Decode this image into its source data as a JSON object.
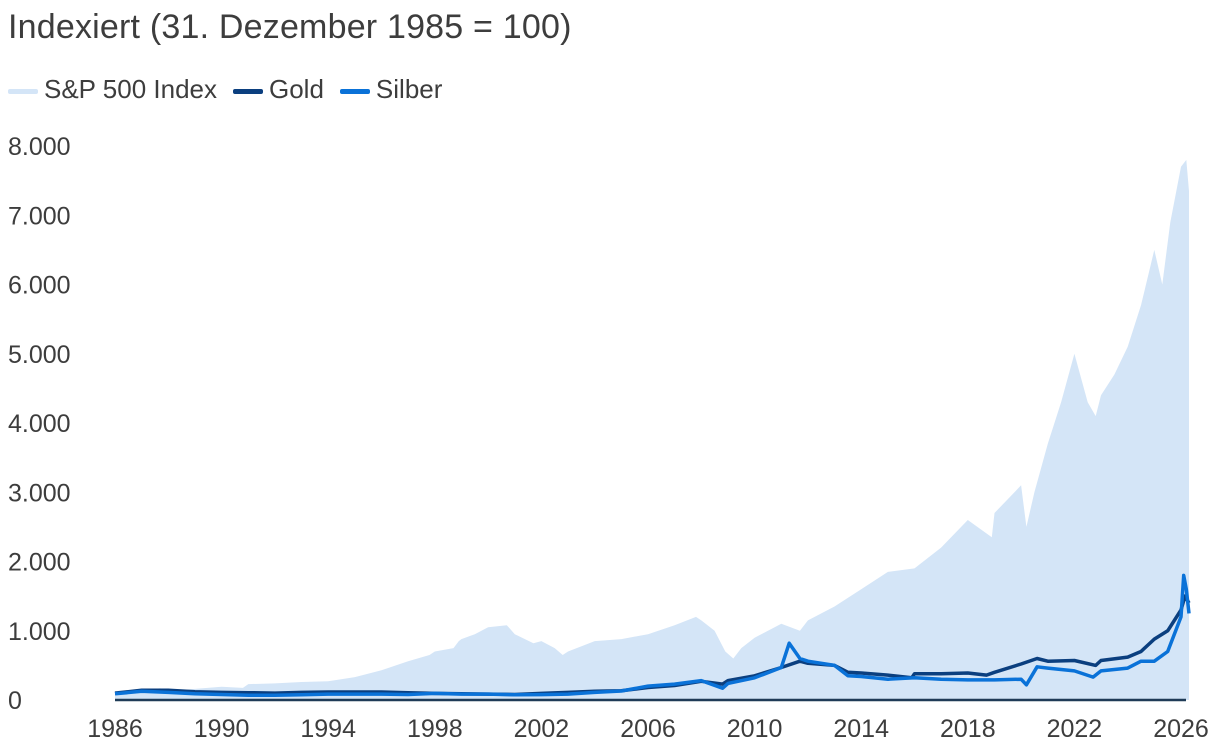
{
  "chart_data": {
    "type": "area",
    "title": "Indexiert (31. Dezember 1985 = 100)",
    "x_ticks": [
      "1986",
      "1990",
      "1994",
      "1998",
      "2002",
      "2006",
      "2010",
      "2014",
      "2018",
      "2022",
      "2026"
    ],
    "y_ticks": [
      "0",
      "1.000",
      "2.000",
      "3.000",
      "4.000",
      "5.000",
      "6.000",
      "7.000",
      "8.000"
    ],
    "xlim": [
      1986,
      2026.3
    ],
    "ylim": [
      0,
      8000
    ],
    "legend_position": "top-left",
    "series": [
      {
        "name": "S&P 500 Index",
        "style": "area",
        "color": "#d4e5f7",
        "points": [
          [
            1986,
            100
          ],
          [
            1987,
            140
          ],
          [
            1987.7,
            170
          ],
          [
            1987.9,
            120
          ],
          [
            1988,
            130
          ],
          [
            1989,
            160
          ],
          [
            1990,
            190
          ],
          [
            1990.8,
            175
          ],
          [
            1991,
            230
          ],
          [
            1992,
            240
          ],
          [
            1993,
            260
          ],
          [
            1994,
            270
          ],
          [
            1995,
            330
          ],
          [
            1996,
            430
          ],
          [
            1997,
            560
          ],
          [
            1997.8,
            650
          ],
          [
            1998,
            700
          ],
          [
            1998.7,
            750
          ],
          [
            1998.9,
            850
          ],
          [
            1999,
            880
          ],
          [
            1999.5,
            950
          ],
          [
            2000,
            1050
          ],
          [
            2000.7,
            1080
          ],
          [
            2001,
            950
          ],
          [
            2001.7,
            820
          ],
          [
            2002,
            850
          ],
          [
            2002.5,
            750
          ],
          [
            2002.8,
            650
          ],
          [
            2003,
            700
          ],
          [
            2004,
            850
          ],
          [
            2005,
            880
          ],
          [
            2006,
            950
          ],
          [
            2007,
            1080
          ],
          [
            2007.8,
            1200
          ],
          [
            2008,
            1150
          ],
          [
            2008.5,
            1000
          ],
          [
            2008.9,
            700
          ],
          [
            2009.2,
            600
          ],
          [
            2009.5,
            750
          ],
          [
            2010,
            900
          ],
          [
            2011,
            1100
          ],
          [
            2011.7,
            1000
          ],
          [
            2012,
            1150
          ],
          [
            2013,
            1350
          ],
          [
            2014,
            1600
          ],
          [
            2015,
            1850
          ],
          [
            2016,
            1900
          ],
          [
            2017,
            2200
          ],
          [
            2018,
            2600
          ],
          [
            2018.9,
            2350
          ],
          [
            2019,
            2700
          ],
          [
            2020,
            3100
          ],
          [
            2020.2,
            2500
          ],
          [
            2020.5,
            3000
          ],
          [
            2021,
            3700
          ],
          [
            2021.5,
            4300
          ],
          [
            2022,
            5000
          ],
          [
            2022.5,
            4300
          ],
          [
            2022.8,
            4100
          ],
          [
            2023,
            4400
          ],
          [
            2023.5,
            4700
          ],
          [
            2024,
            5100
          ],
          [
            2024.5,
            5700
          ],
          [
            2025,
            6500
          ],
          [
            2025.3,
            6000
          ],
          [
            2025.6,
            6900
          ],
          [
            2026,
            7700
          ],
          [
            2026.2,
            7800
          ],
          [
            2026.3,
            7350
          ]
        ]
      },
      {
        "name": "Gold",
        "style": "line",
        "color": "#0b3f7f",
        "points": [
          [
            1986,
            100
          ],
          [
            1987,
            140
          ],
          [
            1988,
            140
          ],
          [
            1989,
            120
          ],
          [
            1990,
            110
          ],
          [
            1991,
            105
          ],
          [
            1992,
            100
          ],
          [
            1993,
            110
          ],
          [
            1994,
            115
          ],
          [
            1995,
            115
          ],
          [
            1996,
            115
          ],
          [
            1997,
            105
          ],
          [
            1998,
            95
          ],
          [
            1999,
            90
          ],
          [
            2000,
            85
          ],
          [
            2001,
            80
          ],
          [
            2002,
            95
          ],
          [
            2003,
            110
          ],
          [
            2004,
            125
          ],
          [
            2005,
            135
          ],
          [
            2006,
            180
          ],
          [
            2007,
            210
          ],
          [
            2008,
            270
          ],
          [
            2008.8,
            230
          ],
          [
            2009,
            280
          ],
          [
            2010,
            350
          ],
          [
            2011,
            470
          ],
          [
            2011.7,
            560
          ],
          [
            2012,
            530
          ],
          [
            2013,
            500
          ],
          [
            2013.5,
            400
          ],
          [
            2014,
            390
          ],
          [
            2015,
            360
          ],
          [
            2015.9,
            320
          ],
          [
            2016,
            380
          ],
          [
            2017,
            380
          ],
          [
            2018,
            390
          ],
          [
            2018.7,
            360
          ],
          [
            2019,
            400
          ],
          [
            2020,
            520
          ],
          [
            2020.6,
            600
          ],
          [
            2021,
            560
          ],
          [
            2022,
            570
          ],
          [
            2022.8,
            500
          ],
          [
            2023,
            570
          ],
          [
            2024,
            620
          ],
          [
            2024.5,
            700
          ],
          [
            2025,
            880
          ],
          [
            2025.5,
            1000
          ],
          [
            2026,
            1300
          ],
          [
            2026.15,
            1500
          ],
          [
            2026.3,
            1400
          ]
        ]
      },
      {
        "name": "Silber",
        "style": "line",
        "color": "#0a72d8",
        "points": [
          [
            1986,
            90
          ],
          [
            1987,
            125
          ],
          [
            1988,
            110
          ],
          [
            1989,
            90
          ],
          [
            1990,
            80
          ],
          [
            1991,
            70
          ],
          [
            1992,
            68
          ],
          [
            1993,
            75
          ],
          [
            1994,
            85
          ],
          [
            1995,
            85
          ],
          [
            1996,
            85
          ],
          [
            1997,
            80
          ],
          [
            1998,
            95
          ],
          [
            1999,
            85
          ],
          [
            2000,
            85
          ],
          [
            2001,
            75
          ],
          [
            2002,
            78
          ],
          [
            2003,
            85
          ],
          [
            2004,
            110
          ],
          [
            2005,
            130
          ],
          [
            2006,
            200
          ],
          [
            2007,
            230
          ],
          [
            2008,
            280
          ],
          [
            2008.8,
            170
          ],
          [
            2009,
            240
          ],
          [
            2010,
            320
          ],
          [
            2011,
            470
          ],
          [
            2011.3,
            820
          ],
          [
            2011.7,
            600
          ],
          [
            2012,
            560
          ],
          [
            2013,
            500
          ],
          [
            2013.5,
            350
          ],
          [
            2014,
            340
          ],
          [
            2015,
            300
          ],
          [
            2016,
            320
          ],
          [
            2017,
            300
          ],
          [
            2018,
            290
          ],
          [
            2019,
            290
          ],
          [
            2020,
            300
          ],
          [
            2020.2,
            220
          ],
          [
            2020.6,
            480
          ],
          [
            2021,
            460
          ],
          [
            2022,
            420
          ],
          [
            2022.7,
            330
          ],
          [
            2023,
            420
          ],
          [
            2024,
            460
          ],
          [
            2024.5,
            560
          ],
          [
            2025,
            560
          ],
          [
            2025.5,
            700
          ],
          [
            2026,
            1200
          ],
          [
            2026.1,
            1800
          ],
          [
            2026.2,
            1600
          ],
          [
            2026.3,
            1250
          ]
        ]
      }
    ]
  }
}
